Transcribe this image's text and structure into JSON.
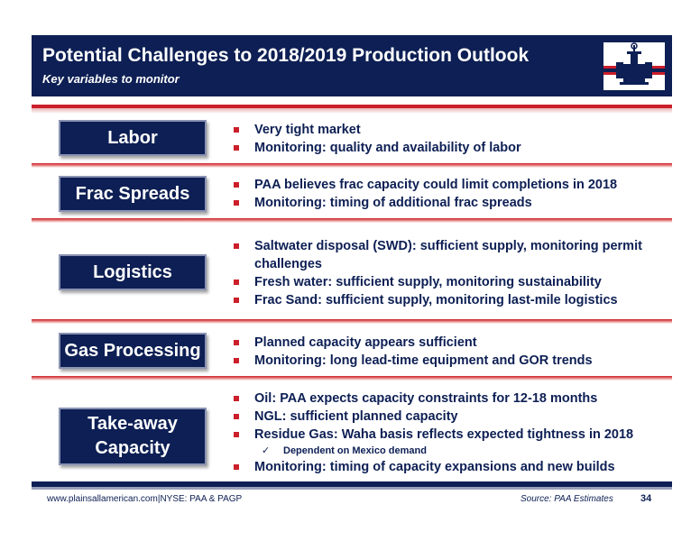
{
  "header": {
    "title": "Potential Challenges to 2018/2019 Production Outlook",
    "subtitle": "Key variables to monitor",
    "logo_icon": "pipeline-valve-icon"
  },
  "rows": [
    {
      "label": "Labor",
      "bullets": [
        "Very tight market",
        "Monitoring: quality and availability of labor"
      ]
    },
    {
      "label": "Frac Spreads",
      "bullets": [
        "PAA believes frac capacity could limit completions in 2018",
        "Monitoring: timing of additional frac spreads"
      ]
    },
    {
      "label": "Logistics",
      "bullets": [
        "Saltwater disposal (SWD): sufficient supply, monitoring permit challenges",
        "Fresh water: sufficient supply, monitoring sustainability",
        "Frac Sand: sufficient supply, monitoring last-mile logistics"
      ]
    },
    {
      "label": "Gas Processing",
      "bullets": [
        "Planned capacity appears sufficient",
        "Monitoring: long lead-time equipment and GOR trends"
      ]
    },
    {
      "label_line1": "Take-away",
      "label_line2": "Capacity",
      "bullets": [
        "Oil: PAA expects capacity constraints for 12-18 months",
        "NGL: sufficient planned capacity",
        "Residue Gas: Waha basis reflects expected tightness in 2018"
      ],
      "sub_bullet": "Dependent on Mexico demand",
      "last_bullet": "Monitoring: timing of capacity expansions and new builds"
    }
  ],
  "footer": {
    "website": "www.plainsallamerican.com",
    "divider": "|",
    "ticker": "NYSE: PAA & PAGP",
    "source": "Source: PAA Estimates",
    "page_number": "34"
  },
  "colors": {
    "navy": "#0d1f54",
    "red": "#cc1f2a"
  }
}
